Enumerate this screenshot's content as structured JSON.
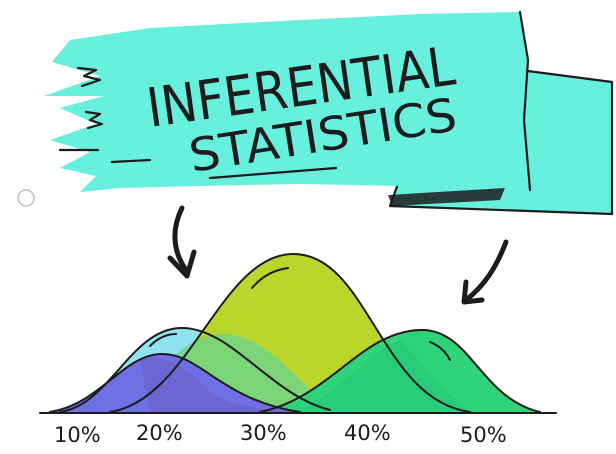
{
  "banner": {
    "line1": "INFERENTIAL",
    "line2": "STATISTICS"
  },
  "axis": {
    "tick_labels": [
      "10%",
      "20%",
      "30%",
      "40%",
      "50%"
    ]
  },
  "colors": {
    "banner": "#66f0dd",
    "curve_light_blue": "#8fe3ef",
    "curve_purple": "#7070e6",
    "curve_lime": "#bbd62a",
    "curve_green": "#2fd47a",
    "ink": "#1c1c1c"
  },
  "icons": {
    "left_arrow": "arrow-down-curved-icon",
    "right_arrow": "arrow-down-left-icon",
    "radio": "radio-circle-icon"
  }
}
